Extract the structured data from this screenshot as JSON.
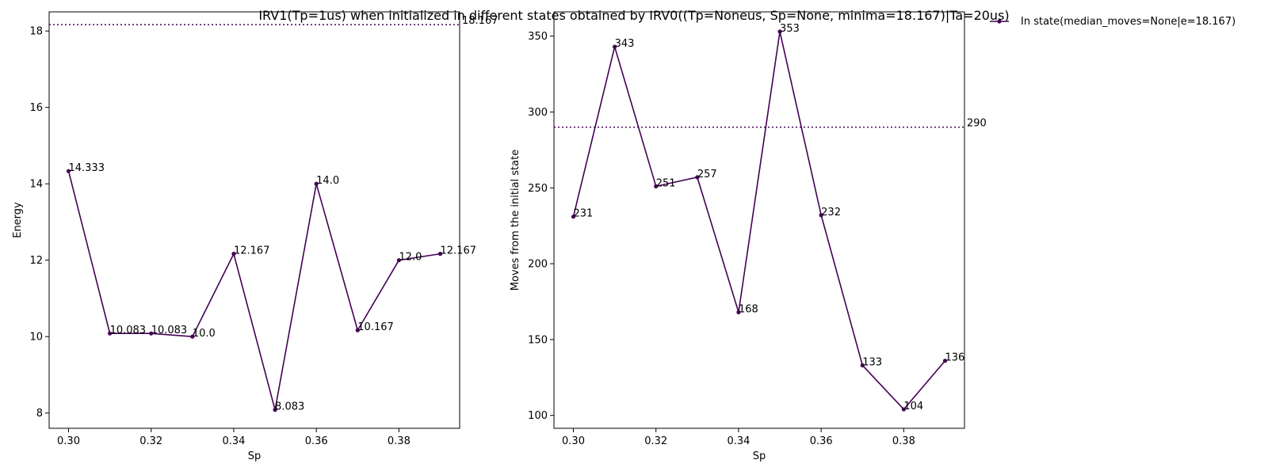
{
  "chart_data": [
    {
      "type": "line",
      "title": "IRV1(Tp=1us) when initialized in different states obtained by IRV0((Tp=Noneus, Sp=None, minima=18.167)|Ta=20us)",
      "xlabel": "Sp",
      "ylabel": "Energy",
      "x": [
        0.3,
        0.31,
        0.32,
        0.33,
        0.34,
        0.35,
        0.36,
        0.37,
        0.38,
        0.39
      ],
      "series": [
        {
          "name": "In state(median_moves=None|e=18.167)",
          "values": [
            14.333,
            10.083,
            10.083,
            10.0,
            12.167,
            8.083,
            14.0,
            10.167,
            12.0,
            12.167
          ],
          "labels": [
            "14.333",
            "10.083",
            "10.083",
            "10.0",
            "12.167",
            "8.083",
            "14.0",
            "10.167",
            "12.0",
            "12.167"
          ]
        }
      ],
      "reference_line": {
        "y": 18.167,
        "label": "18.167",
        "style": "dotted"
      },
      "xlim": [
        0.2953,
        0.3947
      ],
      "ylim": [
        7.6,
        18.5
      ],
      "xticks": [
        "0.30",
        "0.32",
        "0.34",
        "0.36",
        "0.38"
      ],
      "yticks": [
        "8",
        "10",
        "12",
        "14",
        "16",
        "18"
      ],
      "grid": false
    },
    {
      "type": "line",
      "xlabel": "Sp",
      "ylabel": "Moves from the initial state",
      "x": [
        0.3,
        0.31,
        0.32,
        0.33,
        0.34,
        0.35,
        0.36,
        0.37,
        0.38,
        0.39
      ],
      "series": [
        {
          "name": "In state(median_moves=None|e=18.167)",
          "values": [
            231,
            343,
            251,
            257,
            168,
            353,
            232,
            133,
            104,
            136
          ],
          "labels": [
            "231",
            "343",
            "251",
            "257",
            "168",
            "353",
            "232",
            "133",
            "104",
            "136"
          ]
        }
      ],
      "reference_line": {
        "y": 290,
        "label": "290",
        "style": "dotted"
      },
      "xlim": [
        0.2953,
        0.3947
      ],
      "ylim": [
        91.5,
        366
      ],
      "xticks": [
        "0.30",
        "0.32",
        "0.34",
        "0.36",
        "0.38"
      ],
      "yticks": [
        "100",
        "150",
        "200",
        "250",
        "300",
        "350"
      ],
      "grid": false
    }
  ],
  "legend": {
    "label": "In state(median_moves=None|e=18.167)",
    "placement": "upper-right-outside"
  },
  "colors": {
    "series": "#440154",
    "axes": "#000000"
  }
}
